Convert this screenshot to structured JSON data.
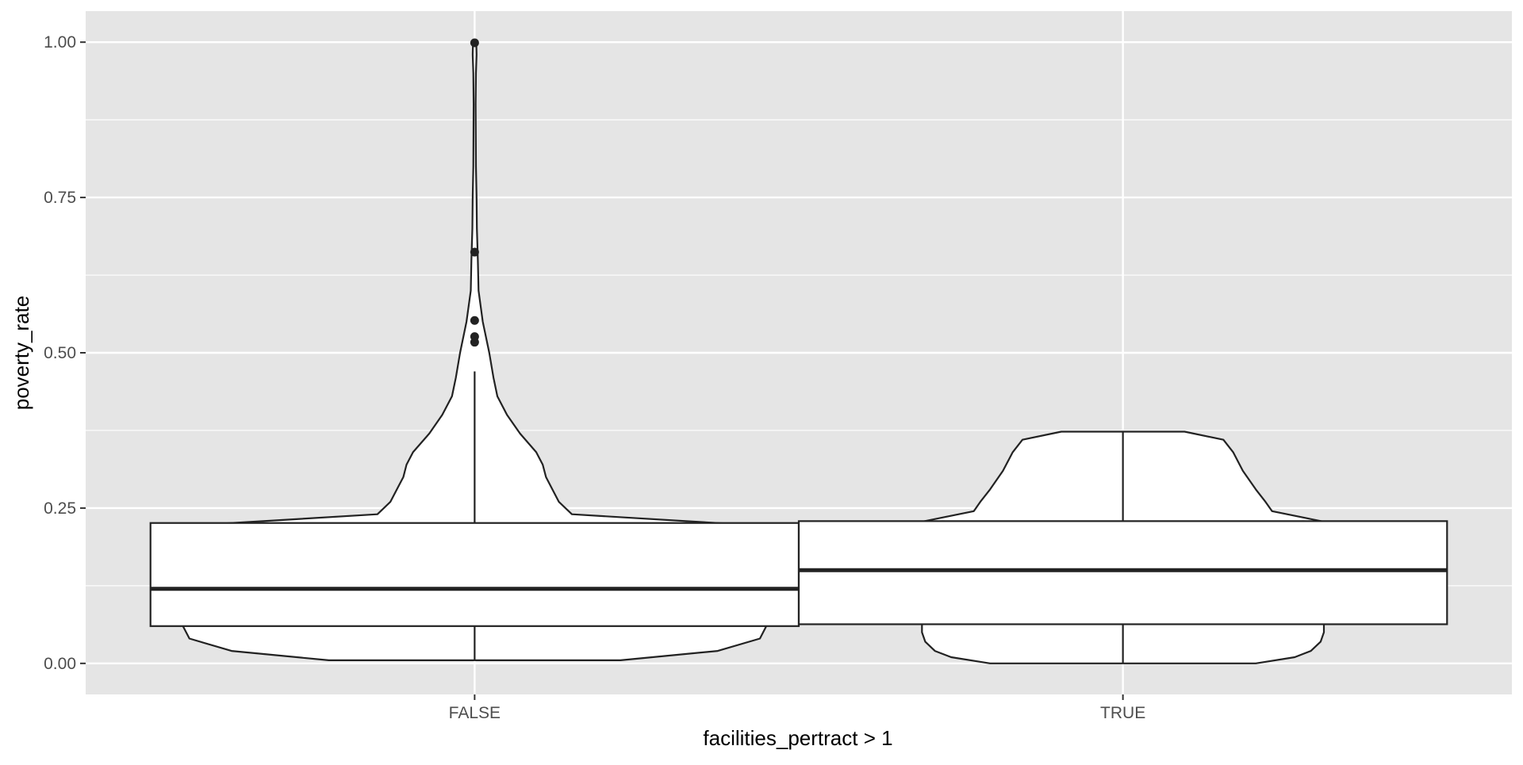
{
  "chart_data": {
    "type": "violin",
    "xlabel": "facilities_pertract > 1",
    "ylabel": "poverty_rate",
    "categories": [
      "FALSE",
      "TRUE"
    ],
    "y_ticks": [
      0.0,
      0.25,
      0.5,
      0.75,
      1.0
    ],
    "y_tick_labels": [
      "0.00",
      "0.25",
      "0.50",
      "0.75",
      "1.00"
    ],
    "ylim": [
      -0.05,
      1.05
    ],
    "grid": true,
    "legend": "none",
    "colors": {
      "panel": "#e5e5e5",
      "grid": "#ffffff",
      "fill": "#ffffff",
      "stroke": "#222222"
    },
    "series": [
      {
        "category": "FALSE",
        "violin": {
          "ymin": 0.005,
          "ymax": 1.0,
          "density": [
            [
              0.005,
              0.45
            ],
            [
              0.02,
              0.75
            ],
            [
              0.04,
              0.88
            ],
            [
              0.06,
              0.9
            ],
            [
              0.1,
              0.9
            ],
            [
              0.15,
              0.9
            ],
            [
              0.2,
              0.86
            ],
            [
              0.225,
              0.78
            ],
            [
              0.24,
              0.3
            ],
            [
              0.26,
              0.26
            ],
            [
              0.28,
              0.24
            ],
            [
              0.3,
              0.22
            ],
            [
              0.32,
              0.21
            ],
            [
              0.34,
              0.19
            ],
            [
              0.37,
              0.14
            ],
            [
              0.4,
              0.1
            ],
            [
              0.43,
              0.07
            ],
            [
              0.46,
              0.058
            ],
            [
              0.5,
              0.045
            ],
            [
              0.55,
              0.025
            ],
            [
              0.6,
              0.012
            ],
            [
              0.65,
              0.01
            ],
            [
              0.7,
              0.007
            ],
            [
              0.75,
              0.006
            ],
            [
              0.8,
              0.004
            ],
            [
              0.9,
              0.003
            ],
            [
              0.95,
              0.004
            ],
            [
              0.98,
              0.006
            ],
            [
              1.0,
              0.005
            ]
          ]
        },
        "box": {
          "lower": 0.06,
          "middle": 0.12,
          "upper": 0.226,
          "whisker_low": 0.005,
          "whisker_high": 0.47
        },
        "outliers": [
          0.517,
          0.526,
          0.552,
          0.662,
          0.999
        ]
      },
      {
        "category": "TRUE",
        "violin": {
          "ymin": 0.0,
          "ymax": 0.373,
          "density": [
            [
              0.0,
              0.41
            ],
            [
              0.01,
              0.53
            ],
            [
              0.02,
              0.58
            ],
            [
              0.035,
              0.61
            ],
            [
              0.05,
              0.62
            ],
            [
              0.063,
              0.62
            ],
            [
              0.1,
              0.62
            ],
            [
              0.15,
              0.62
            ],
            [
              0.2,
              0.62
            ],
            [
              0.228,
              0.62
            ],
            [
              0.245,
              0.46
            ],
            [
              0.26,
              0.44
            ],
            [
              0.28,
              0.41
            ],
            [
              0.31,
              0.37
            ],
            [
              0.34,
              0.34
            ],
            [
              0.36,
              0.31
            ],
            [
              0.373,
              0.19
            ]
          ]
        },
        "box": {
          "lower": 0.063,
          "middle": 0.15,
          "upper": 0.229,
          "whisker_low": 0.0,
          "whisker_high": 0.373
        },
        "outliers": []
      }
    ]
  }
}
